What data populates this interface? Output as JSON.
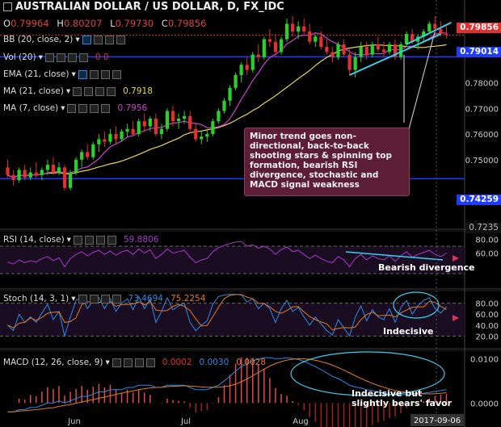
{
  "header": {
    "title": "AUSTRALIAN DOLLAR / US DOLLAR, D, FX_IDC",
    "ohlc": [
      {
        "k": "O",
        "v": "0.79964"
      },
      {
        "k": "H",
        "v": "0.80207"
      },
      {
        "k": "L",
        "v": "0.79730"
      },
      {
        "k": "C",
        "v": "0.79856"
      }
    ]
  },
  "indicators": [
    {
      "label": "BB (20, close, 2)",
      "value": ""
    },
    {
      "label": "Vol (20)",
      "value": "0 0"
    },
    {
      "label": "EMA (21, close)",
      "value": ""
    },
    {
      "label": "MA (21, close)",
      "value": "0.7918"
    },
    {
      "label": "MA (7, close)",
      "value": "0.7956"
    }
  ],
  "annotation": "Minor trend goes non-directional, back-to-back shooting stars & spinning top formation, bearish RSI divergence, stochastic and MACD signal weakness",
  "panes": {
    "rsi": {
      "label": "RSI (14, close)",
      "value": "59.8806",
      "note": "Bearish divergence"
    },
    "stoch": {
      "label": "Stoch (14, 3, 1)",
      "value1": "73.4694",
      "value2": "75.2254",
      "note": "Indecisive"
    },
    "macd": {
      "label": "MACD (12, 26, close, 9)",
      "value1": "0.0002",
      "value2": "0.0030",
      "value3": "0.0028",
      "note": "Indecisive but slightly bears' favor"
    }
  },
  "price_tags": {
    "close": "0.79856",
    "res": "0.79014",
    "sup": "0.74259",
    "low": "0.7235"
  },
  "colors": {
    "up": "#2bd12b",
    "down": "#e03030",
    "bb": "#1e3cff",
    "ma21": "#e8d84a",
    "ma7": "#d040d0",
    "rsi": "#a838c8",
    "stochK": "#2a8be8",
    "stochD": "#e07a2a",
    "annot": "#5b1e34"
  },
  "chart_data": {
    "type": "candlestick",
    "x_tick_labels": [
      "Jun",
      "Jul",
      "Aug",
      "2017-09-06"
    ],
    "y_ticks": [
      "0.78000",
      "0.77000",
      "0.76000",
      "0.75000",
      "0.74259",
      "0.7235"
    ],
    "rsi_ticks": [
      "80.00",
      "60.00"
    ],
    "stoch_ticks": [
      "80.00",
      "60.00",
      "40.00",
      "20.00"
    ],
    "macd_ticks": [
      "0.0100",
      "0.0000"
    ],
    "candles": [
      [
        0.747,
        0.75,
        0.743,
        0.744
      ],
      [
        0.744,
        0.746,
        0.74,
        0.742
      ],
      [
        0.742,
        0.747,
        0.741,
        0.746
      ],
      [
        0.746,
        0.748,
        0.742,
        0.743
      ],
      [
        0.743,
        0.747,
        0.742,
        0.745
      ],
      [
        0.745,
        0.749,
        0.743,
        0.744
      ],
      [
        0.744,
        0.747,
        0.742,
        0.746
      ],
      [
        0.746,
        0.75,
        0.744,
        0.748
      ],
      [
        0.748,
        0.751,
        0.744,
        0.745
      ],
      [
        0.745,
        0.749,
        0.744,
        0.747
      ],
      [
        0.747,
        0.748,
        0.738,
        0.739
      ],
      [
        0.739,
        0.746,
        0.738,
        0.745
      ],
      [
        0.745,
        0.751,
        0.744,
        0.75
      ],
      [
        0.75,
        0.754,
        0.747,
        0.753
      ],
      [
        0.753,
        0.756,
        0.75,
        0.751
      ],
      [
        0.751,
        0.757,
        0.75,
        0.756
      ],
      [
        0.756,
        0.76,
        0.753,
        0.758
      ],
      [
        0.758,
        0.761,
        0.755,
        0.757
      ],
      [
        0.757,
        0.762,
        0.756,
        0.76
      ],
      [
        0.76,
        0.763,
        0.756,
        0.758
      ],
      [
        0.758,
        0.762,
        0.757,
        0.761
      ],
      [
        0.761,
        0.764,
        0.759,
        0.762
      ],
      [
        0.762,
        0.765,
        0.759,
        0.76
      ],
      [
        0.76,
        0.766,
        0.759,
        0.765
      ],
      [
        0.765,
        0.768,
        0.761,
        0.763
      ],
      [
        0.763,
        0.767,
        0.761,
        0.766
      ],
      [
        0.766,
        0.768,
        0.759,
        0.76
      ],
      [
        0.76,
        0.764,
        0.758,
        0.762
      ],
      [
        0.762,
        0.77,
        0.761,
        0.769
      ],
      [
        0.769,
        0.771,
        0.763,
        0.765
      ],
      [
        0.765,
        0.768,
        0.762,
        0.766
      ],
      [
        0.766,
        0.769,
        0.764,
        0.767
      ],
      [
        0.767,
        0.769,
        0.761,
        0.762
      ],
      [
        0.762,
        0.764,
        0.757,
        0.758
      ],
      [
        0.758,
        0.761,
        0.756,
        0.759
      ],
      [
        0.759,
        0.762,
        0.757,
        0.76
      ],
      [
        0.76,
        0.766,
        0.759,
        0.765
      ],
      [
        0.765,
        0.77,
        0.764,
        0.769
      ],
      [
        0.769,
        0.774,
        0.768,
        0.773
      ],
      [
        0.773,
        0.779,
        0.771,
        0.778
      ],
      [
        0.778,
        0.784,
        0.777,
        0.783
      ],
      [
        0.783,
        0.788,
        0.78,
        0.787
      ],
      [
        0.787,
        0.79,
        0.783,
        0.785
      ],
      [
        0.785,
        0.792,
        0.784,
        0.791
      ],
      [
        0.791,
        0.795,
        0.788,
        0.79
      ],
      [
        0.79,
        0.798,
        0.789,
        0.797
      ],
      [
        0.797,
        0.801,
        0.794,
        0.796
      ],
      [
        0.796,
        0.799,
        0.79,
        0.792
      ],
      [
        0.792,
        0.798,
        0.791,
        0.797
      ],
      [
        0.797,
        0.805,
        0.796,
        0.803
      ],
      [
        0.803,
        0.806,
        0.798,
        0.8
      ],
      [
        0.8,
        0.804,
        0.797,
        0.802
      ],
      [
        0.802,
        0.805,
        0.799,
        0.8
      ],
      [
        0.8,
        0.803,
        0.795,
        0.796
      ],
      [
        0.796,
        0.799,
        0.794,
        0.798
      ],
      [
        0.798,
        0.8,
        0.793,
        0.794
      ],
      [
        0.794,
        0.797,
        0.791,
        0.792
      ],
      [
        0.792,
        0.794,
        0.788,
        0.79
      ],
      [
        0.79,
        0.796,
        0.789,
        0.795
      ],
      [
        0.795,
        0.797,
        0.79,
        0.791
      ],
      [
        0.791,
        0.793,
        0.783,
        0.785
      ],
      [
        0.785,
        0.792,
        0.782,
        0.79
      ],
      [
        0.79,
        0.796,
        0.788,
        0.794
      ],
      [
        0.794,
        0.796,
        0.789,
        0.791
      ],
      [
        0.791,
        0.796,
        0.79,
        0.795
      ],
      [
        0.795,
        0.798,
        0.792,
        0.793
      ],
      [
        0.793,
        0.796,
        0.79,
        0.792
      ],
      [
        0.792,
        0.796,
        0.791,
        0.795
      ],
      [
        0.795,
        0.797,
        0.789,
        0.79
      ],
      [
        0.79,
        0.796,
        0.789,
        0.795
      ],
      [
        0.795,
        0.8,
        0.794,
        0.799
      ],
      [
        0.799,
        0.801,
        0.795,
        0.796
      ],
      [
        0.796,
        0.799,
        0.793,
        0.798
      ],
      [
        0.798,
        0.801,
        0.796,
        0.8
      ],
      [
        0.8,
        0.804,
        0.799,
        0.803
      ],
      [
        0.803,
        0.806,
        0.799,
        0.801
      ],
      [
        0.801,
        0.804,
        0.798,
        0.799
      ],
      [
        0.799,
        0.8021,
        0.7973,
        0.7986
      ]
    ],
    "rsi": [
      47,
      44,
      50,
      46,
      49,
      47,
      52,
      55,
      49,
      53,
      40,
      52,
      58,
      62,
      56,
      61,
      64,
      58,
      63,
      57,
      62,
      64,
      58,
      66,
      60,
      65,
      52,
      58,
      66,
      60,
      62,
      64,
      54,
      46,
      50,
      52,
      62,
      68,
      71,
      74,
      76,
      77,
      70,
      72,
      67,
      70,
      66,
      58,
      65,
      69,
      62,
      64,
      58,
      52,
      57,
      52,
      48,
      46,
      55,
      50,
      40,
      52,
      58,
      50,
      56,
      52,
      50,
      56,
      48,
      56,
      62,
      54,
      58,
      61,
      64,
      58,
      55,
      60
    ],
    "stoch": [
      40,
      30,
      60,
      45,
      55,
      45,
      62,
      78,
      50,
      65,
      20,
      55,
      85,
      92,
      70,
      85,
      90,
      70,
      88,
      65,
      80,
      88,
      68,
      92,
      70,
      88,
      45,
      65,
      90,
      68,
      75,
      80,
      45,
      30,
      40,
      48,
      78,
      92,
      95,
      96,
      96,
      95,
      82,
      88,
      70,
      80,
      70,
      45,
      70,
      85,
      65,
      72,
      55,
      40,
      55,
      42,
      30,
      22,
      50,
      35,
      20,
      55,
      75,
      48,
      68,
      55,
      50,
      70,
      45,
      72,
      85,
      60,
      75,
      85,
      90,
      70,
      62,
      73
    ],
    "macd": [
      -0.002,
      -0.002,
      -0.0015,
      -0.0015,
      -0.001,
      -0.001,
      -0.0005,
      0,
      0,
      0.0005,
      0,
      0.0005,
      0.001,
      0.0015,
      0.0015,
      0.002,
      0.0025,
      0.0025,
      0.003,
      0.003,
      0.003,
      0.0035,
      0.0035,
      0.004,
      0.004,
      0.004,
      0.0035,
      0.0035,
      0.004,
      0.004,
      0.004,
      0.004,
      0.0035,
      0.003,
      0.003,
      0.003,
      0.0035,
      0.004,
      0.005,
      0.006,
      0.0072,
      0.0082,
      0.0088,
      0.0095,
      0.0098,
      0.0102,
      0.0102,
      0.01,
      0.01,
      0.0102,
      0.01,
      0.0098,
      0.0094,
      0.0088,
      0.0082,
      0.0075,
      0.0068,
      0.006,
      0.0055,
      0.0048,
      0.004,
      0.0036,
      0.0034,
      0.003,
      0.0028,
      0.0025,
      0.0022,
      0.002,
      0.0018,
      0.0018,
      0.002,
      0.002,
      0.002,
      0.0022,
      0.0024,
      0.0026,
      0.0028,
      0.003
    ]
  }
}
